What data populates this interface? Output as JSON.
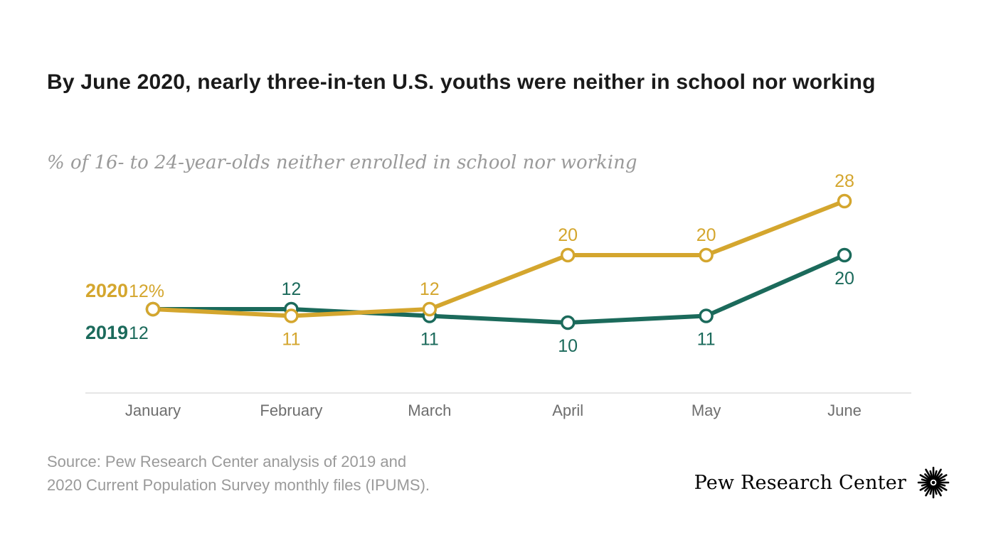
{
  "header": {
    "title": "By June 2020, nearly three-in-ten U.S. youths were neither in school nor working",
    "subtitle": "% of 16- to 24-year-olds neither enrolled in school nor working"
  },
  "chart_data": {
    "type": "line",
    "categories": [
      "January",
      "February",
      "March",
      "April",
      "May",
      "June"
    ],
    "series": [
      {
        "name": "2020",
        "color": "#D4A62E",
        "values": [
          12,
          11,
          12,
          20,
          20,
          28
        ],
        "labels": [
          "12%",
          "11",
          "12",
          "20",
          "20",
          "28"
        ],
        "label_positions": [
          "left",
          "below",
          "above",
          "above",
          "above",
          "above"
        ]
      },
      {
        "name": "2019",
        "color": "#1B6A5B",
        "values": [
          12,
          12,
          11,
          10,
          11,
          20
        ],
        "labels": [
          "12",
          "12",
          "11",
          "10",
          "11",
          "20"
        ],
        "label_positions": [
          "left",
          "above",
          "below",
          "below",
          "below",
          "below"
        ]
      }
    ],
    "ylim": [
      0,
      30
    ],
    "grid": false,
    "legend_position": "left"
  },
  "footer": {
    "source_line1": "Source: Pew Research Center analysis of 2019 and",
    "source_line2": "2020 Current Population Survey monthly files (IPUMS).",
    "brand": "Pew Research Center"
  }
}
